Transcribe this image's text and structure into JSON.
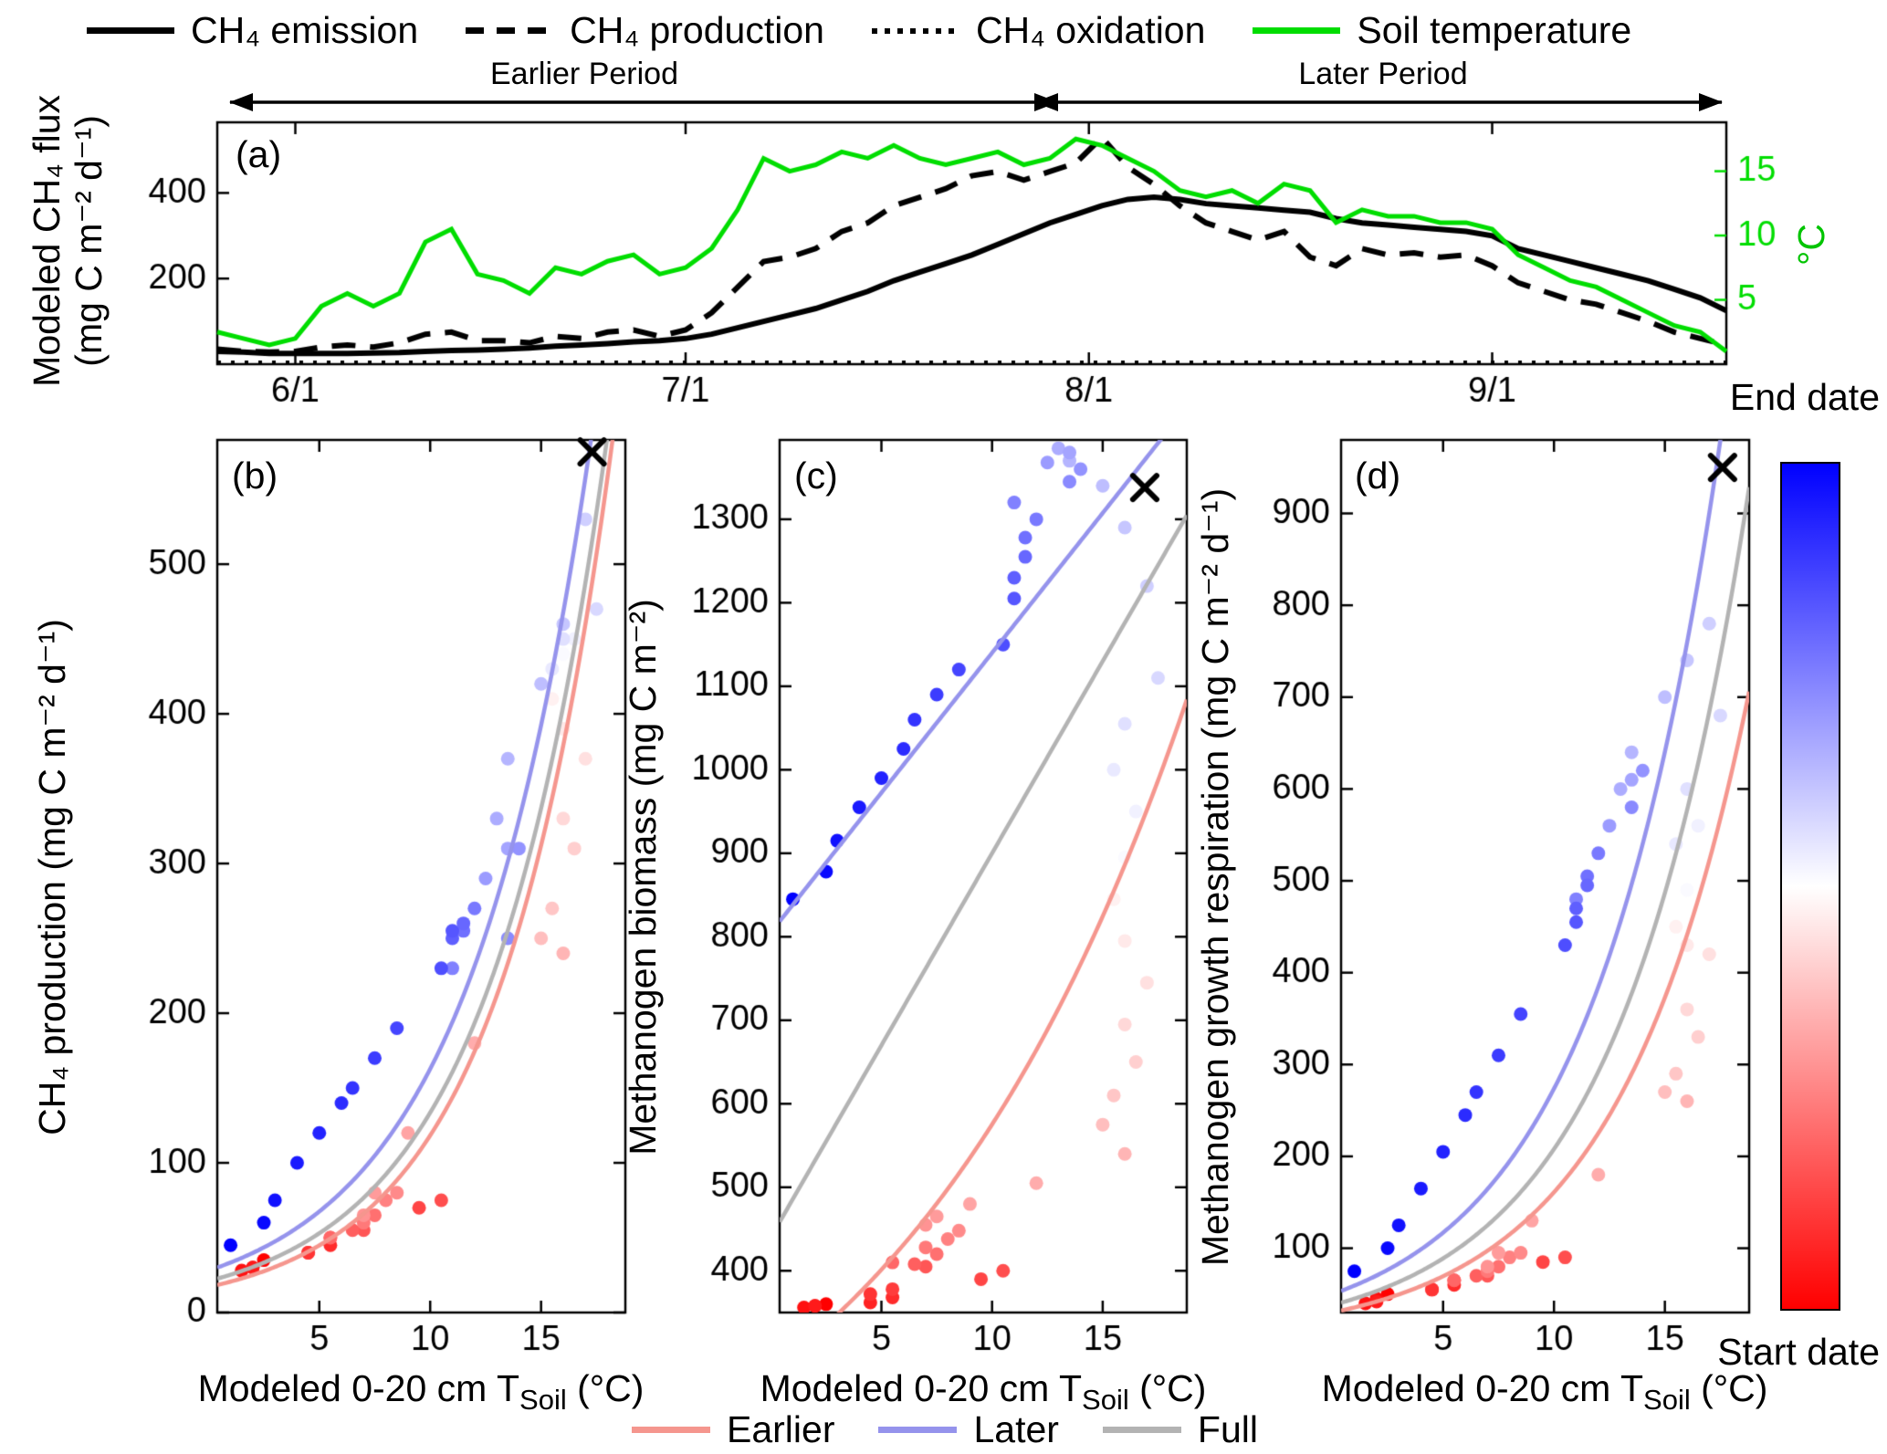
{
  "legend_top": {
    "items": [
      {
        "label": "CH₄ emission",
        "line": "solid",
        "color": "#000000"
      },
      {
        "label": "CH₄ production",
        "line": "dashed",
        "color": "#000000"
      },
      {
        "label": "CH₄ oxidation",
        "line": "dotted",
        "color": "#000000"
      },
      {
        "label": "Soil temperature",
        "line": "solid",
        "color": "#00dd00"
      }
    ]
  },
  "periods": {
    "earlier": "Earlier Period",
    "later": "Later Period"
  },
  "colorbar": {
    "top_label": "End date",
    "bottom_label": "Start date",
    "top_color": "#0000ff",
    "mid_color": "#ffffff",
    "bottom_color": "#ff0000"
  },
  "legend_bottom": {
    "items": [
      {
        "label": "Earlier",
        "color": "#f5968e"
      },
      {
        "label": "Later",
        "color": "#9593ec"
      },
      {
        "label": "Full",
        "color": "#b3b3b3"
      }
    ]
  },
  "chart_data": [
    {
      "id": "a",
      "letter": "(a)",
      "type": "line",
      "ylabel_left_line1": "Modeled CH₄ flux",
      "ylabel_left_line2": "(mg C m⁻² d⁻¹)",
      "ylabel_right": "°C",
      "xlim_days": [
        0,
        116
      ],
      "xticks": [
        {
          "day": 6,
          "label": "6/1"
        },
        {
          "day": 36,
          "label": "7/1"
        },
        {
          "day": 67,
          "label": "8/1"
        },
        {
          "day": 98,
          "label": "9/1"
        }
      ],
      "ylim_left": [
        0,
        565
      ],
      "yticks_left": [
        200,
        400
      ],
      "ylim_right": [
        0,
        18.8
      ],
      "yticks_right": [
        5,
        10,
        15
      ],
      "days": [
        0,
        2,
        4,
        6,
        8,
        10,
        12,
        14,
        16,
        18,
        20,
        22,
        24,
        26,
        28,
        30,
        32,
        34,
        36,
        38,
        40,
        42,
        44,
        46,
        48,
        50,
        52,
        54,
        56,
        58,
        60,
        62,
        64,
        66,
        68,
        70,
        72,
        74,
        76,
        78,
        80,
        82,
        84,
        86,
        88,
        90,
        92,
        94,
        96,
        98,
        100,
        102,
        104,
        106,
        108,
        110,
        112,
        114,
        116
      ],
      "series": [
        {
          "name": "CH₄ emission",
          "axis": "left",
          "dash": "solid",
          "color": "#000000",
          "width": 6,
          "values": [
            30,
            28,
            25,
            25,
            25,
            25,
            26,
            27,
            30,
            32,
            33,
            35,
            38,
            42,
            45,
            48,
            52,
            55,
            60,
            70,
            85,
            100,
            115,
            130,
            150,
            170,
            195,
            215,
            235,
            255,
            280,
            305,
            330,
            350,
            370,
            385,
            390,
            385,
            375,
            370,
            365,
            360,
            355,
            340,
            330,
            325,
            320,
            315,
            310,
            300,
            270,
            255,
            240,
            225,
            210,
            195,
            175,
            155,
            125
          ]
        },
        {
          "name": "CH₄ production",
          "axis": "left",
          "dash": "dashed",
          "color": "#000000",
          "width": 6,
          "values": [
            35,
            30,
            28,
            30,
            40,
            45,
            40,
            50,
            70,
            75,
            55,
            55,
            50,
            65,
            60,
            75,
            80,
            65,
            80,
            120,
            180,
            240,
            250,
            270,
            310,
            330,
            370,
            390,
            410,
            440,
            450,
            430,
            450,
            470,
            530,
            460,
            420,
            370,
            330,
            310,
            290,
            310,
            250,
            230,
            270,
            255,
            260,
            250,
            255,
            230,
            190,
            170,
            150,
            140,
            120,
            100,
            75,
            60,
            45
          ]
        },
        {
          "name": "CH₄ oxidation",
          "axis": "left",
          "dash": "dotted",
          "color": "#000000",
          "width": 5,
          "values": [
            3,
            3,
            3,
            3,
            3,
            3,
            3,
            3,
            3,
            3,
            3,
            3,
            3,
            3,
            3,
            3,
            3,
            3,
            3,
            3,
            3,
            3,
            3,
            3,
            3,
            3,
            3,
            3,
            3,
            3,
            3,
            3,
            3,
            3,
            3,
            3,
            3,
            3,
            3,
            3,
            3,
            3,
            3,
            3,
            3,
            3,
            3,
            3,
            3,
            3,
            3,
            3,
            3,
            3,
            3,
            3,
            3,
            3,
            3
          ]
        },
        {
          "name": "Soil temperature",
          "axis": "right",
          "dash": "solid",
          "color": "#00dd00",
          "width": 5,
          "values": [
            2.5,
            2,
            1.5,
            2,
            4.5,
            5.5,
            4.5,
            5.5,
            9.5,
            10.5,
            7,
            6.5,
            5.5,
            7.5,
            7,
            8,
            8.5,
            7,
            7.5,
            9,
            12,
            16,
            15,
            15.5,
            16.5,
            16,
            17,
            16,
            15.5,
            16,
            16.5,
            15.5,
            16,
            17.5,
            17,
            16,
            15,
            13.5,
            13,
            13.5,
            12.5,
            14,
            13.5,
            11,
            12,
            11.5,
            11.5,
            11,
            11,
            10.5,
            8.5,
            7.5,
            6.5,
            6,
            5,
            4,
            3,
            2.5,
            1
          ]
        }
      ]
    },
    {
      "id": "b",
      "letter": "(b)",
      "type": "scatter",
      "ylabel": "CH₄ production (mg C m⁻² d⁻¹)",
      "xlabel_parts": {
        "pre": "Modeled 0-20 cm T",
        "sub": "Soil",
        "post": " (°C)"
      },
      "xlim": [
        0.4,
        18.8
      ],
      "xticks": [
        5,
        10,
        15
      ],
      "ylim": [
        0,
        583
      ],
      "yticks": [
        0,
        100,
        200,
        300,
        400,
        500
      ],
      "color_by": "date (red = start, blue = end)",
      "x_source": "daily modeled 0-20 cm soil temperature",
      "end_marker": {
        "x": 17.3,
        "y": 575
      },
      "y_values": [
        35,
        30,
        28,
        30,
        40,
        45,
        40,
        50,
        70,
        75,
        55,
        55,
        50,
        65,
        60,
        75,
        80,
        65,
        80,
        120,
        180,
        240,
        250,
        270,
        310,
        330,
        370,
        390,
        410,
        440,
        450,
        430,
        450,
        470,
        530,
        460,
        420,
        370,
        330,
        310,
        290,
        310,
        250,
        230,
        270,
        255,
        260,
        250,
        255,
        230,
        190,
        170,
        150,
        140,
        120,
        100,
        75,
        60,
        45
      ],
      "fits": [
        {
          "name": "Earlier",
          "color": "#f5968e",
          "type": "exp",
          "a": 17,
          "b": 0.194
        },
        {
          "name": "Later",
          "color": "#9593ec",
          "type": "exp",
          "a": 28,
          "b": 0.176
        },
        {
          "name": "Full",
          "color": "#b3b3b3",
          "type": "exp",
          "a": 21,
          "b": 0.185
        }
      ]
    },
    {
      "id": "c",
      "letter": "(c)",
      "type": "scatter",
      "ylabel": "Methanogen biomass (mg C m⁻²)",
      "xlabel_parts": {
        "pre": "Modeled 0-20 cm T",
        "sub": "Soil",
        "post": " (°C)"
      },
      "xlim": [
        0.4,
        18.8
      ],
      "xticks": [
        5,
        10,
        15
      ],
      "ylim": [
        350,
        1395
      ],
      "yticks": [
        400,
        500,
        600,
        700,
        800,
        900,
        1000,
        1100,
        1200,
        1300
      ],
      "color_by": "date (red = start, blue = end)",
      "x_source": "daily modeled 0-20 cm soil temperature",
      "end_marker": {
        "x": 16.9,
        "y": 1338
      },
      "y_values": [
        360,
        358,
        356,
        358,
        362,
        368,
        372,
        378,
        390,
        400,
        405,
        408,
        410,
        420,
        428,
        438,
        448,
        455,
        465,
        480,
        505,
        540,
        575,
        610,
        650,
        695,
        745,
        795,
        845,
        895,
        950,
        1000,
        1055,
        1110,
        1220,
        1290,
        1340,
        1370,
        1385,
        1380,
        1368,
        1360,
        1345,
        1320,
        1300,
        1278,
        1255,
        1230,
        1205,
        1150,
        1120,
        1090,
        1060,
        1025,
        990,
        955,
        915,
        878,
        845
      ],
      "fits": [
        {
          "name": "Earlier",
          "color": "#f5968e",
          "type": "exp",
          "a": 280,
          "b": 0.072
        },
        {
          "name": "Later",
          "color": "#9593ec",
          "type": "linear",
          "m": 33.5,
          "c": 805
        },
        {
          "name": "Full",
          "color": "#b3b3b3",
          "type": "linear",
          "m": 46,
          "c": 440
        }
      ]
    },
    {
      "id": "d",
      "letter": "(d)",
      "type": "scatter",
      "ylabel": "Methanogen growth respiration (mg C m⁻² d⁻¹)",
      "xlabel_parts": {
        "pre": "Modeled 0-20 cm T",
        "sub": "Soil",
        "post": " (°C)"
      },
      "xlim": [
        0.4,
        18.8
      ],
      "xticks": [
        5,
        10,
        15
      ],
      "ylim": [
        30,
        980
      ],
      "yticks": [
        100,
        200,
        300,
        400,
        500,
        600,
        700,
        800,
        900
      ],
      "color_by": "date (red = start, blue = end)",
      "x_source": "daily modeled 0-20 cm soil temperature",
      "end_marker": {
        "x": 17.6,
        "y": 950
      },
      "y_values": [
        50,
        45,
        40,
        42,
        55,
        60,
        55,
        65,
        85,
        90,
        70,
        70,
        65,
        80,
        75,
        90,
        95,
        80,
        95,
        130,
        180,
        260,
        270,
        290,
        330,
        360,
        420,
        430,
        450,
        490,
        560,
        540,
        600,
        680,
        780,
        740,
        700,
        640,
        600,
        610,
        560,
        620,
        580,
        480,
        530,
        505,
        495,
        470,
        455,
        430,
        355,
        310,
        270,
        245,
        205,
        165,
        125,
        100,
        75
      ],
      "fits": [
        {
          "name": "Earlier",
          "color": "#f5968e",
          "type": "exp",
          "a": 30,
          "b": 0.168
        },
        {
          "name": "Later",
          "color": "#9593ec",
          "type": "exp",
          "a": 50,
          "b": 0.17
        },
        {
          "name": "Full",
          "color": "#b3b3b3",
          "type": "exp",
          "a": 38,
          "b": 0.17
        }
      ]
    }
  ]
}
